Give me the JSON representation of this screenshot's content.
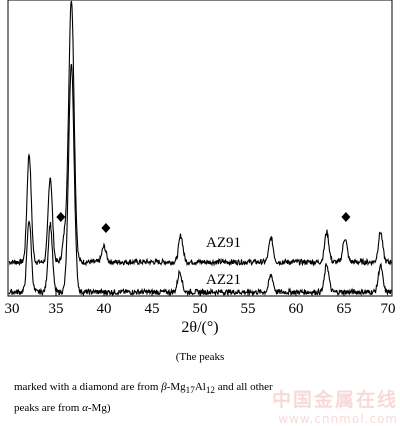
{
  "chart_data": {
    "type": "line",
    "title": "",
    "xlabel": "2θ/(°)",
    "ylabel": "",
    "xlim": [
      30,
      70
    ],
    "x_ticks": [
      "30",
      "35",
      "40",
      "45",
      "50",
      "55",
      "60",
      "65",
      "70"
    ],
    "grid": false,
    "legend": "none",
    "series": [
      {
        "name": "AZ91",
        "baseline": 0.8,
        "peaks": [
          {
            "x": 32.2,
            "height": 9.0
          },
          {
            "x": 34.4,
            "height": 7.1
          },
          {
            "x": 35.9,
            "height": 2.0
          },
          {
            "x": 36.6,
            "height": 22.0
          },
          {
            "x": 40.0,
            "height": 1.3
          },
          {
            "x": 48.0,
            "height": 2.2
          },
          {
            "x": 57.4,
            "height": 2.0
          },
          {
            "x": 63.2,
            "height": 2.5
          },
          {
            "x": 65.1,
            "height": 2.0
          },
          {
            "x": 68.8,
            "height": 2.5
          }
        ]
      },
      {
        "name": "AZ21",
        "baseline": 0.0,
        "peaks": [
          {
            "x": 32.2,
            "height": 6.0
          },
          {
            "x": 34.4,
            "height": 5.7
          },
          {
            "x": 36.6,
            "height": 19.0
          },
          {
            "x": 47.9,
            "height": 1.7
          },
          {
            "x": 57.4,
            "height": 1.4
          },
          {
            "x": 63.2,
            "height": 2.3
          },
          {
            "x": 68.8,
            "height": 2.2
          }
        ]
      }
    ],
    "markers": [
      {
        "symbol": "diamond",
        "x": 35.5
      },
      {
        "symbol": "diamond",
        "x": 40.2
      },
      {
        "symbol": "diamond",
        "x": 65.2
      }
    ]
  },
  "caption": {
    "line1": "(The  peaks",
    "line2_part1": "marked with a diamond are from ",
    "beta": "β",
    "line2_part2": "-Mg",
    "sub17": "17",
    "al": "Al",
    "sub12": "12",
    "line2_part3": " and all other",
    "line3_part1": "peaks are from ",
    "alpha": "α",
    "line3_part2": "-Mg)"
  },
  "watermark": {
    "text_cn": "中国金属在线",
    "url": "www.cnnmol.com"
  }
}
